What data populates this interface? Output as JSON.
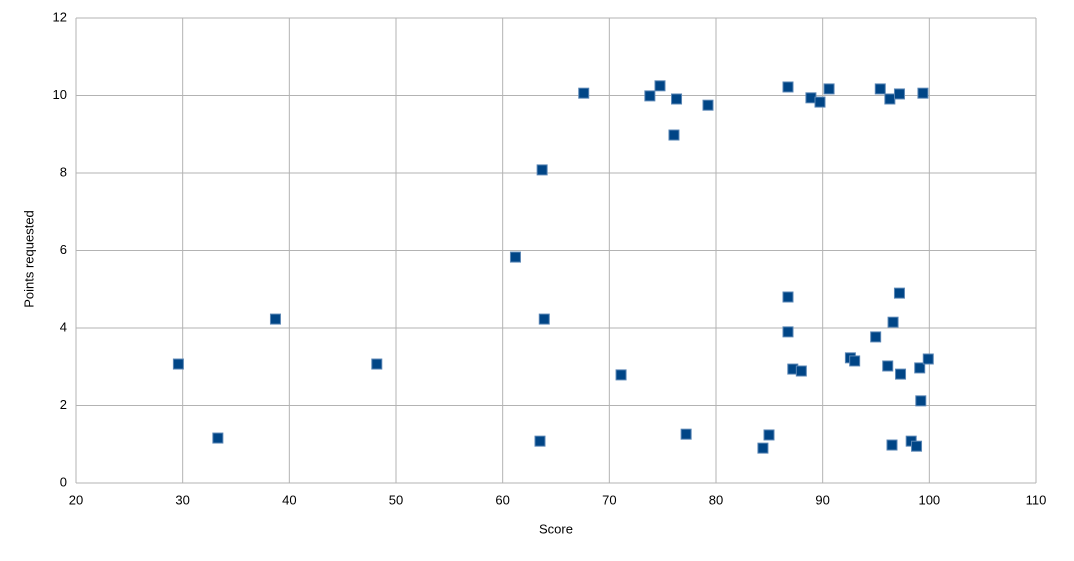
{
  "chart_data": {
    "type": "scatter",
    "x_label": "Score",
    "y_label": "Points requested",
    "x": [
      29.6,
      33.3,
      38.7,
      48.2,
      61.2,
      63.7,
      63.9,
      63.5,
      67.6,
      71.1,
      73.8,
      74.75,
      76.3,
      76.06,
      79.25,
      77.2,
      84.4,
      84.97,
      86.75,
      86.75,
      86.75,
      87.2,
      88.0,
      88.9,
      89.75,
      90.6,
      92.6,
      93.0,
      94.97,
      95.4,
      96.3,
      96.1,
      96.6,
      96.5,
      97.2,
      97.3,
      97.2,
      98.3,
      98.8,
      99.2,
      99.1,
      99.4,
      99.9
    ],
    "values": [
      3.07,
      1.16,
      4.23,
      3.07,
      5.83,
      8.08,
      4.23,
      1.08,
      10.06,
      2.79,
      9.99,
      10.25,
      9.91,
      8.98,
      9.75,
      1.26,
      0.9,
      1.24,
      10.22,
      4.8,
      3.9,
      2.94,
      2.89,
      9.94,
      9.83,
      10.17,
      3.23,
      3.15,
      3.77,
      10.17,
      9.91,
      3.02,
      4.15,
      0.98,
      10.04,
      2.81,
      4.9,
      1.08,
      0.95,
      2.12,
      2.97,
      10.06,
      3.2
    ],
    "color": "#004586",
    "xlim": [
      20,
      110
    ],
    "xticks": [
      20,
      30,
      40,
      50,
      60,
      70,
      80,
      90,
      100,
      110
    ],
    "ylim": [
      0,
      12
    ],
    "yticks": [
      0,
      2,
      4,
      6,
      8,
      10,
      12
    ],
    "grid": true
  }
}
